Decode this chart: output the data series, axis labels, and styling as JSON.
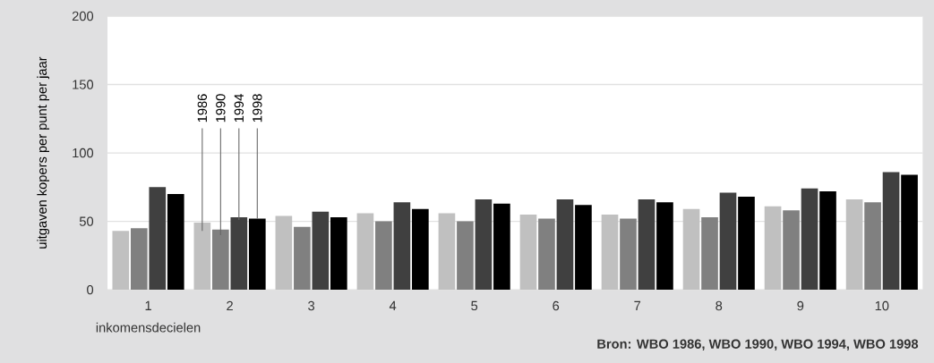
{
  "chart_data": {
    "type": "bar",
    "ylabel": "uitgaven kopers per punt per jaar",
    "xlabel": "inkomensdecielen",
    "categories": [
      "1",
      "2",
      "3",
      "4",
      "5",
      "6",
      "7",
      "8",
      "9",
      "10"
    ],
    "series": [
      {
        "name": "1986",
        "color": "#c0c0c0",
        "values": [
          43,
          49,
          54,
          56,
          56,
          55,
          55,
          59,
          61,
          66
        ]
      },
      {
        "name": "1990",
        "color": "#808080",
        "values": [
          45,
          44,
          46,
          50,
          50,
          52,
          52,
          53,
          58,
          64
        ]
      },
      {
        "name": "1994",
        "color": "#404040",
        "values": [
          75,
          53,
          57,
          64,
          66,
          66,
          66,
          71,
          74,
          86
        ]
      },
      {
        "name": "1998",
        "color": "#000000",
        "values": [
          70,
          52,
          53,
          59,
          63,
          62,
          64,
          68,
          72,
          84
        ]
      }
    ],
    "ylim": [
      0,
      200
    ],
    "yticks": [
      0,
      50,
      100,
      150,
      200
    ],
    "grid": "y",
    "annotations": [
      "Bron: WBO 1986, WBO 1990, WBO 1994, WBO 1998"
    ]
  }
}
